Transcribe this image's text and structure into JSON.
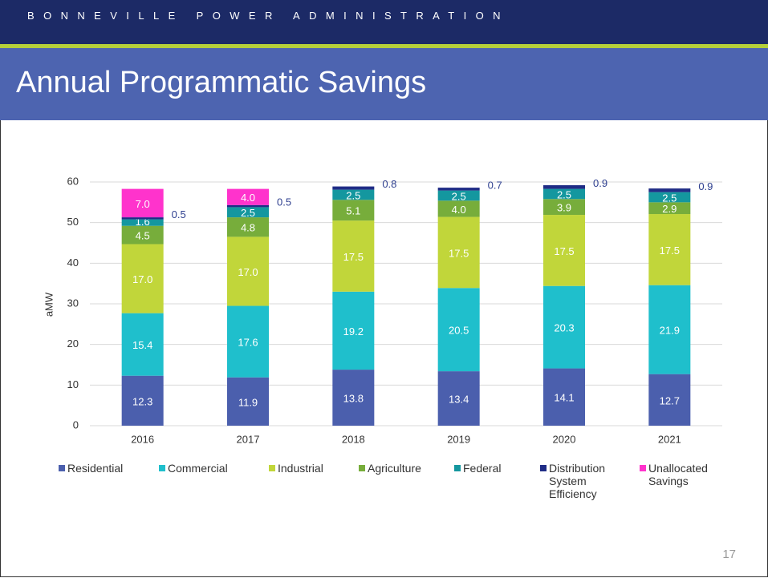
{
  "header": {
    "organization": "BONNEVILLE POWER ADMINISTRATION",
    "title": "Annual Programmatic Savings"
  },
  "page_number": "17",
  "chart_data": {
    "type": "stacked_bar",
    "y_label": "aMW",
    "categories": [
      "2016",
      "2017",
      "2018",
      "2019",
      "2020",
      "2021"
    ],
    "ylim": [
      0,
      60
    ],
    "yticks": [
      0,
      10,
      20,
      30,
      40,
      50,
      60
    ],
    "grid": true,
    "series": [
      {
        "name": "Residential",
        "color": "#4b5fad",
        "values": [
          12.3,
          11.9,
          13.8,
          13.4,
          14.1,
          12.7
        ],
        "value_labels": [
          "12.3",
          "11.9",
          "13.8",
          "13.4",
          "14.1",
          "12.7"
        ]
      },
      {
        "name": "Commercial",
        "color": "#1fbfcc",
        "values": [
          15.4,
          17.6,
          19.2,
          20.5,
          20.3,
          21.9
        ],
        "value_labels": [
          "15.4",
          "17.6",
          "19.2",
          "20.5",
          "20.3",
          "21.9"
        ]
      },
      {
        "name": "Industrial",
        "color": "#c1d63a",
        "values": [
          17.0,
          17.0,
          17.5,
          17.5,
          17.5,
          17.5
        ],
        "value_labels": [
          "17.0",
          "17.0",
          "17.5",
          "17.5",
          "17.5",
          "17.5"
        ]
      },
      {
        "name": "Agriculture",
        "color": "#77ad3b",
        "values": [
          4.5,
          4.8,
          5.1,
          4.0,
          3.9,
          2.9
        ],
        "value_labels": [
          "4.5",
          "4.8",
          "5.1",
          "4.0",
          "3.9",
          "2.9"
        ]
      },
      {
        "name": "Federal",
        "color": "#14979f",
        "values": [
          1.6,
          2.5,
          2.5,
          2.5,
          2.5,
          2.5
        ],
        "value_labels": [
          "1.6",
          "2.5",
          "2.5",
          "2.5",
          "2.5",
          "2.5"
        ]
      },
      {
        "name": "Distribution System Efficiency",
        "color": "#1f2c86",
        "values": [
          0.5,
          0.5,
          0.8,
          0.7,
          0.9,
          0.9
        ],
        "value_labels": [
          "0.5",
          "0.5",
          "0.8",
          "0.7",
          "0.9",
          "0.9"
        ]
      },
      {
        "name": "Unallocated Savings",
        "color": "#ff33cc",
        "values": [
          7.0,
          4.0,
          null,
          null,
          null,
          null
        ],
        "value_labels": [
          "7.0",
          "4.0",
          null,
          null,
          null,
          null
        ]
      }
    ]
  }
}
